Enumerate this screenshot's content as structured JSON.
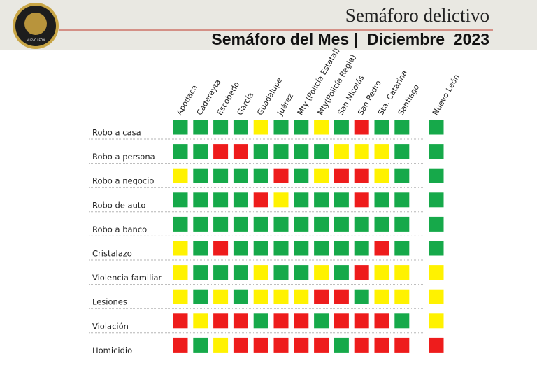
{
  "header": {
    "title": "Semáforo delictivo",
    "subtitle": "Semáforo del Mes |  Diciembre  2023",
    "logo_text": "NUEVO LEÓN"
  },
  "table": {
    "columns": [
      "Apodaca",
      "Cadereyta",
      "Escobedo",
      "García",
      "Guadalupe",
      "Juárez",
      "Mty (Policía Estatal)",
      "Mty(Policía Regia)",
      "San Nicolás",
      "San Pedro",
      "Sta. Catarina",
      "Santiago",
      "Nuevo León"
    ],
    "rows": [
      {
        "label": "Robo a casa",
        "cells": [
          "#16a94a",
          "#16a94a",
          "#16a94a",
          "#16a94a",
          "#fff200",
          "#16a94a",
          "#16a94a",
          "#fff200",
          "#16a94a",
          "#ee1c1c",
          "#16a94a",
          "#16a94a",
          "#16a94a"
        ]
      },
      {
        "label": "Robo a persona",
        "cells": [
          "#16a94a",
          "#16a94a",
          "#ee1c1c",
          "#ee1c1c",
          "#16a94a",
          "#16a94a",
          "#16a94a",
          "#16a94a",
          "#fff200",
          "#fff200",
          "#fff200",
          "#16a94a",
          "#16a94a"
        ]
      },
      {
        "label": "Robo a negocio",
        "cells": [
          "#fff200",
          "#16a94a",
          "#16a94a",
          "#16a94a",
          "#16a94a",
          "#ee1c1c",
          "#16a94a",
          "#fff200",
          "#ee1c1c",
          "#ee1c1c",
          "#fff200",
          "#16a94a",
          "#16a94a"
        ]
      },
      {
        "label": "Robo de auto",
        "cells": [
          "#16a94a",
          "#16a94a",
          "#16a94a",
          "#16a94a",
          "#ee1c1c",
          "#fff200",
          "#16a94a",
          "#16a94a",
          "#16a94a",
          "#ee1c1c",
          "#16a94a",
          "#16a94a",
          "#16a94a"
        ]
      },
      {
        "label": "Robo a banco",
        "cells": [
          "#16a94a",
          "#16a94a",
          "#16a94a",
          "#16a94a",
          "#16a94a",
          "#16a94a",
          "#16a94a",
          "#16a94a",
          "#16a94a",
          "#16a94a",
          "#16a94a",
          "#16a94a",
          "#16a94a"
        ]
      },
      {
        "label": "Cristalazo",
        "cells": [
          "#fff200",
          "#16a94a",
          "#ee1c1c",
          "#16a94a",
          "#16a94a",
          "#16a94a",
          "#16a94a",
          "#16a94a",
          "#16a94a",
          "#16a94a",
          "#ee1c1c",
          "#16a94a",
          "#16a94a"
        ]
      },
      {
        "label": "Violencia familiar",
        "cells": [
          "#fff200",
          "#16a94a",
          "#16a94a",
          "#16a94a",
          "#fff200",
          "#16a94a",
          "#16a94a",
          "#fff200",
          "#16a94a",
          "#ee1c1c",
          "#fff200",
          "#fff200",
          "#fff200"
        ]
      },
      {
        "label": "Lesiones",
        "cells": [
          "#fff200",
          "#16a94a",
          "#fff200",
          "#16a94a",
          "#fff200",
          "#fff200",
          "#fff200",
          "#ee1c1c",
          "#ee1c1c",
          "#16a94a",
          "#fff200",
          "#fff200",
          "#fff200"
        ]
      },
      {
        "label": "Violación",
        "cells": [
          "#ee1c1c",
          "#fff200",
          "#ee1c1c",
          "#ee1c1c",
          "#16a94a",
          "#ee1c1c",
          "#ee1c1c",
          "#16a94a",
          "#ee1c1c",
          "#ee1c1c",
          "#ee1c1c",
          "#16a94a",
          "#fff200"
        ]
      },
      {
        "label": "Homicidio",
        "cells": [
          "#ee1c1c",
          "#16a94a",
          "#fff200",
          "#ee1c1c",
          "#ee1c1c",
          "#ee1c1c",
          "#ee1c1c",
          "#ee1c1c",
          "#16a94a",
          "#ee1c1c",
          "#ee1c1c",
          "#ee1c1c",
          "#ee1c1c"
        ]
      }
    ]
  }
}
